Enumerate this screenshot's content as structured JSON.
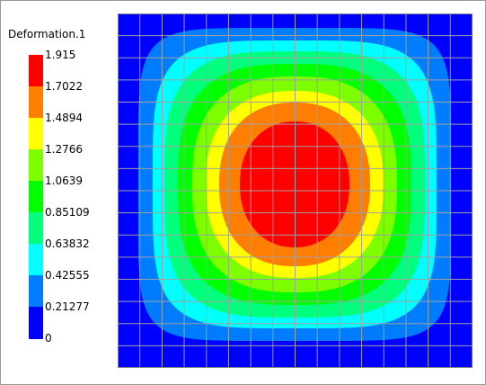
{
  "legend": {
    "title": "Deformation.1",
    "ticks": [
      "1.915",
      "1.7022",
      "1.4894",
      "1.2766",
      "1.0639",
      "0.85109",
      "0.63832",
      "0.42555",
      "0.21277",
      "0"
    ],
    "band_colors_top_to_bottom": [
      "#ff0000",
      "#ff7d00",
      "#ffff00",
      "#7dff00",
      "#00ff00",
      "#00ff7d",
      "#00ffff",
      "#007dff",
      "#0000ff"
    ]
  },
  "plot": {
    "mesh_divisions": 16,
    "contour_colors_outer_to_inner": [
      "#0000ff",
      "#007dff",
      "#00ffff",
      "#00ff7d",
      "#00ff00",
      "#7dff00",
      "#ffff00",
      "#ff7d00",
      "#ff0000"
    ],
    "grid_color": "#a0a0a0",
    "border_color": "#808080"
  }
}
